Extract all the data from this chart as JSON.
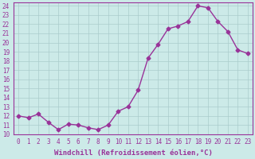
{
  "x": [
    0,
    1,
    2,
    3,
    4,
    5,
    6,
    7,
    8,
    9,
    10,
    11,
    12,
    13,
    14,
    15,
    16,
    17,
    18,
    19,
    20,
    21,
    22,
    23
  ],
  "y": [
    12.0,
    11.8,
    12.2,
    11.3,
    10.5,
    11.1,
    11.0,
    10.7,
    10.5,
    11.0,
    12.5,
    13.0,
    14.8,
    18.3,
    19.8,
    21.5,
    21.8,
    22.3,
    24.0,
    23.8,
    22.3,
    21.2,
    19.2,
    18.8
  ],
  "line_color": "#993399",
  "marker": "D",
  "marker_size": 2.5,
  "bg_color": "#cceae8",
  "grid_color": "#aacccc",
  "xlim": [
    -0.5,
    23.5
  ],
  "ylim": [
    10,
    24.4
  ],
  "yticks": [
    10,
    11,
    12,
    13,
    14,
    15,
    16,
    17,
    18,
    19,
    20,
    21,
    22,
    23,
    24
  ],
  "xticks": [
    0,
    1,
    2,
    3,
    4,
    5,
    6,
    7,
    8,
    9,
    10,
    11,
    12,
    13,
    14,
    15,
    16,
    17,
    18,
    19,
    20,
    21,
    22,
    23
  ],
  "xlabel": "Windchill (Refroidissement éolien,°C)",
  "xlabel_fontsize": 6.5,
  "tick_fontsize": 5.5,
  "line_width": 1.0
}
